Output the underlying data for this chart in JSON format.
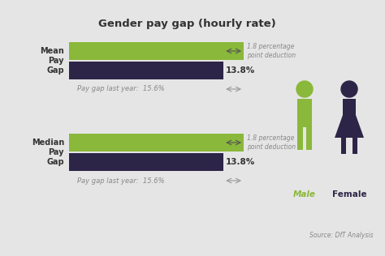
{
  "title": "Gender pay gap (hourly rate)",
  "background_color": "#e5e5e5",
  "bar_green": "#8ab83a",
  "bar_purple": "#2d2547",
  "green_value": 15.6,
  "purple_value": 13.8,
  "max_val": 18.5,
  "label_top1": "Mean\nPay\nGap",
  "label_top2": "Median\nPay\nGap",
  "bar_label": "13.8%",
  "last_year_text": "Pay gap last year:  15.6%",
  "deduction_text": "1.8 percentage\npoint deduction",
  "source_text": "Source: DfT Analysis",
  "male_color": "#8ab83a",
  "female_color": "#2d2547",
  "arrow_color": "#888888",
  "text_color": "#888888",
  "title_color": "#333333"
}
